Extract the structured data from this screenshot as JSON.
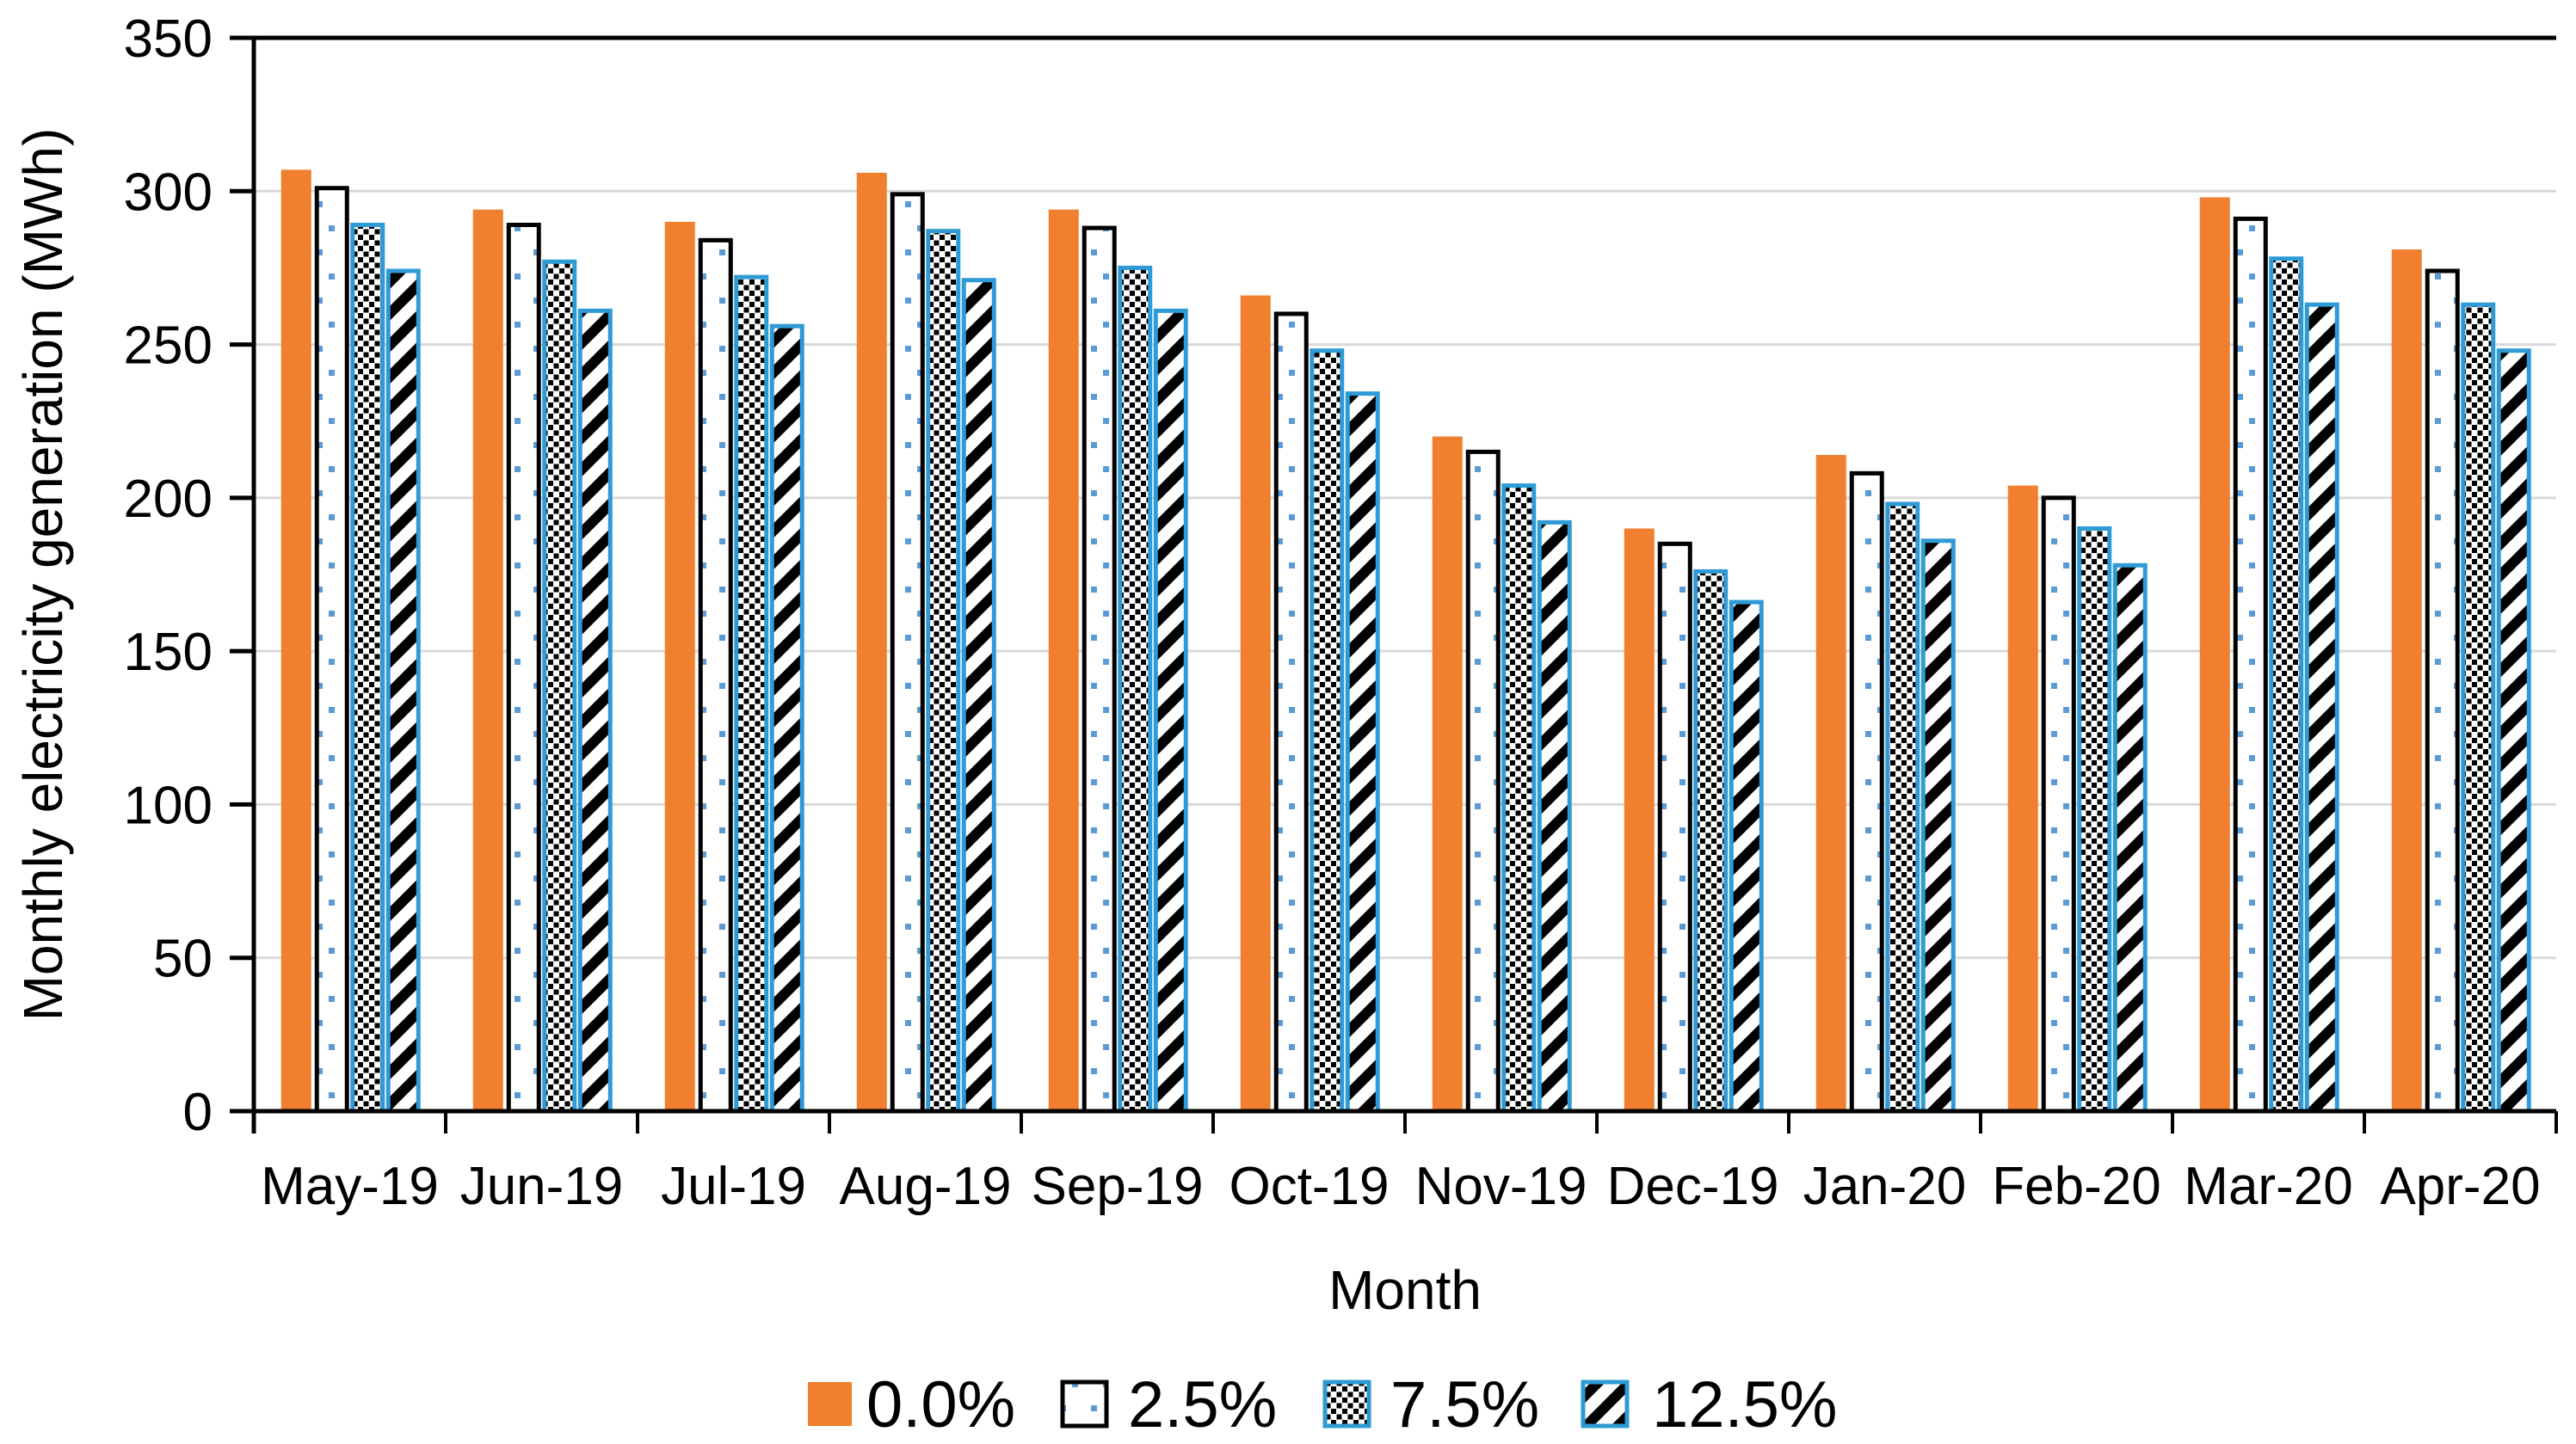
{
  "page": {
    "background": "#FFFFFF"
  },
  "chart_data": {
    "type": "bar",
    "title": "",
    "xlabel": "Month",
    "ylabel": "Monthly electricity generation (MWh)",
    "ylim": [
      0,
      350
    ],
    "ytick_step": 50,
    "yticks": [
      0,
      50,
      100,
      150,
      200,
      250,
      300,
      350
    ],
    "grid": "horizontal-gridlines",
    "legend_position": "bottom-center",
    "categories": [
      "May-19",
      "Jun-19",
      "Jul-19",
      "Aug-19",
      "Sep-19",
      "Oct-19",
      "Nov-19",
      "Dec-19",
      "Jan-20",
      "Feb-20",
      "Mar-20",
      "Apr-20"
    ],
    "series": [
      {
        "name": "0.0%",
        "style": "solid",
        "fill": "#F0802F",
        "border": "none",
        "values": [
          307,
          294,
          290,
          306,
          294,
          266,
          220,
          190,
          214,
          204,
          298,
          281
        ]
      },
      {
        "name": "2.5%",
        "style": "sparse-dots",
        "fill": "#FFFFFF",
        "dot_color": "#5B9BD5",
        "border": "#000000",
        "values": [
          301,
          289,
          284,
          299,
          288,
          260,
          215,
          185,
          208,
          200,
          291,
          274
        ]
      },
      {
        "name": "7.5%",
        "style": "dense-dots",
        "fill": "#FFFFFF",
        "dot_color": "#000000",
        "border": "#2E9BD5",
        "values": [
          289,
          277,
          272,
          287,
          275,
          248,
          204,
          176,
          198,
          190,
          278,
          263
        ]
      },
      {
        "name": "12.5%",
        "style": "diagonal-stripes",
        "fill": "#FFFFFF",
        "stripe_color": "#000000",
        "border": "#2E9BD5",
        "values": [
          274,
          261,
          256,
          271,
          261,
          234,
          192,
          166,
          186,
          178,
          263,
          248
        ]
      }
    ],
    "colors": {
      "gridline": "#D9D9D9",
      "axis": "#000000",
      "text": "#000000"
    }
  }
}
